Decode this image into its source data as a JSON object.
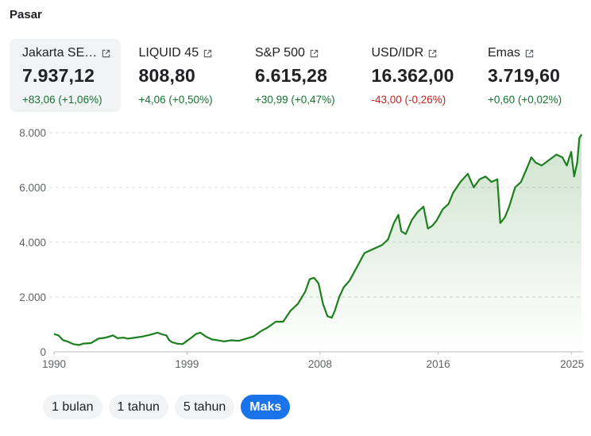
{
  "section_title": "Pasar",
  "tickers": [
    {
      "name": "Jakarta SE…",
      "value": "7.937,12",
      "change": "+83,06 (+1,06%)",
      "direction": "up",
      "selected": true
    },
    {
      "name": "LIQUID 45",
      "value": "808,80",
      "change": "+4,06 (+0,50%)",
      "direction": "up",
      "selected": false
    },
    {
      "name": "S&P 500",
      "value": "6.615,28",
      "change": "+30,99 (+0,47%)",
      "direction": "up",
      "selected": false
    },
    {
      "name": "USD/IDR",
      "value": "16.362,00",
      "change": "-43,00 (-0,26%)",
      "direction": "down",
      "selected": false
    },
    {
      "name": "Emas",
      "value": "3.719,60",
      "change": "+0,60 (+0,02%)",
      "direction": "up",
      "selected": false
    }
  ],
  "icons": {
    "external_link": "external-link-icon"
  },
  "colors": {
    "up": "#137333",
    "down": "#c5221f",
    "line": "#1e7f1e",
    "accent": "#1a73e8"
  },
  "ranges": [
    {
      "label": "1 bulan",
      "active": false
    },
    {
      "label": "1 tahun",
      "active": false
    },
    {
      "label": "5 tahun",
      "active": false
    },
    {
      "label": "Maks",
      "active": true
    }
  ],
  "chart_data": {
    "type": "area",
    "title": "",
    "xlabel": "",
    "ylabel": "",
    "xlim": [
      1990,
      2025.8
    ],
    "ylim": [
      0,
      8000
    ],
    "x_ticks": [
      1990,
      1999,
      2008,
      2016,
      2025
    ],
    "x_tick_labels": [
      "1990",
      "1999",
      "2008",
      "2016",
      "2025"
    ],
    "y_ticks": [
      0,
      2000,
      4000,
      6000,
      8000
    ],
    "y_tick_labels": [
      "0",
      "2.000",
      "4.000",
      "6.000",
      "8.000"
    ],
    "grid": "horizontal-dashed",
    "series": [
      {
        "x": [
          1990.0,
          1990.3,
          1990.6,
          1990.9,
          1991.3,
          1991.7,
          1992.0,
          1992.5,
          1993.0,
          1993.5,
          1994.0,
          1994.3,
          1994.7,
          1995.0,
          1995.5,
          1996.0,
          1996.5,
          1997.0,
          1997.3,
          1997.6,
          1997.8,
          1998.0,
          1998.3,
          1998.7,
          1999.0,
          1999.3,
          1999.6,
          1999.9,
          2000.3,
          2000.7,
          2001.0,
          2001.5,
          2002.0,
          2002.5,
          2003.0,
          2003.5,
          2004.0,
          2004.5,
          2005.0,
          2005.5,
          2006.0,
          2006.5,
          2007.0,
          2007.3,
          2007.6,
          2007.9,
          2008.2,
          2008.5,
          2008.8,
          2009.0,
          2009.3,
          2009.6,
          2010.0,
          2010.5,
          2011.0,
          2011.4,
          2011.8,
          2012.2,
          2012.6,
          2013.0,
          2013.3,
          2013.5,
          2013.8,
          2014.2,
          2014.6,
          2015.0,
          2015.3,
          2015.6,
          2015.9,
          2016.3,
          2016.7,
          2017.0,
          2017.5,
          2018.0,
          2018.4,
          2018.8,
          2019.2,
          2019.6,
          2020.0,
          2020.2,
          2020.5,
          2020.8,
          2021.2,
          2021.6,
          2022.0,
          2022.3,
          2022.6,
          2023.0,
          2023.5,
          2024.0,
          2024.4,
          2024.7,
          2025.0,
          2025.2,
          2025.4,
          2025.55,
          2025.7
        ],
        "y": [
          650,
          600,
          430,
          380,
          280,
          250,
          300,
          320,
          480,
          520,
          600,
          500,
          520,
          480,
          520,
          560,
          620,
          700,
          640,
          600,
          420,
          350,
          300,
          280,
          400,
          520,
          650,
          700,
          550,
          450,
          430,
          380,
          420,
          400,
          480,
          560,
          750,
          900,
          1100,
          1100,
          1500,
          1750,
          2200,
          2650,
          2700,
          2500,
          1750,
          1300,
          1250,
          1500,
          2000,
          2350,
          2600,
          3100,
          3600,
          3700,
          3800,
          3900,
          4100,
          4700,
          5000,
          4400,
          4300,
          4800,
          5100,
          5300,
          4500,
          4600,
          4800,
          5200,
          5400,
          5800,
          6200,
          6500,
          6000,
          6300,
          6400,
          6200,
          6300,
          4700,
          4900,
          5300,
          6000,
          6200,
          6700,
          7100,
          6900,
          6800,
          7000,
          7200,
          7100,
          6800,
          7300,
          6400,
          6900,
          7800,
          7937
        ]
      }
    ]
  }
}
